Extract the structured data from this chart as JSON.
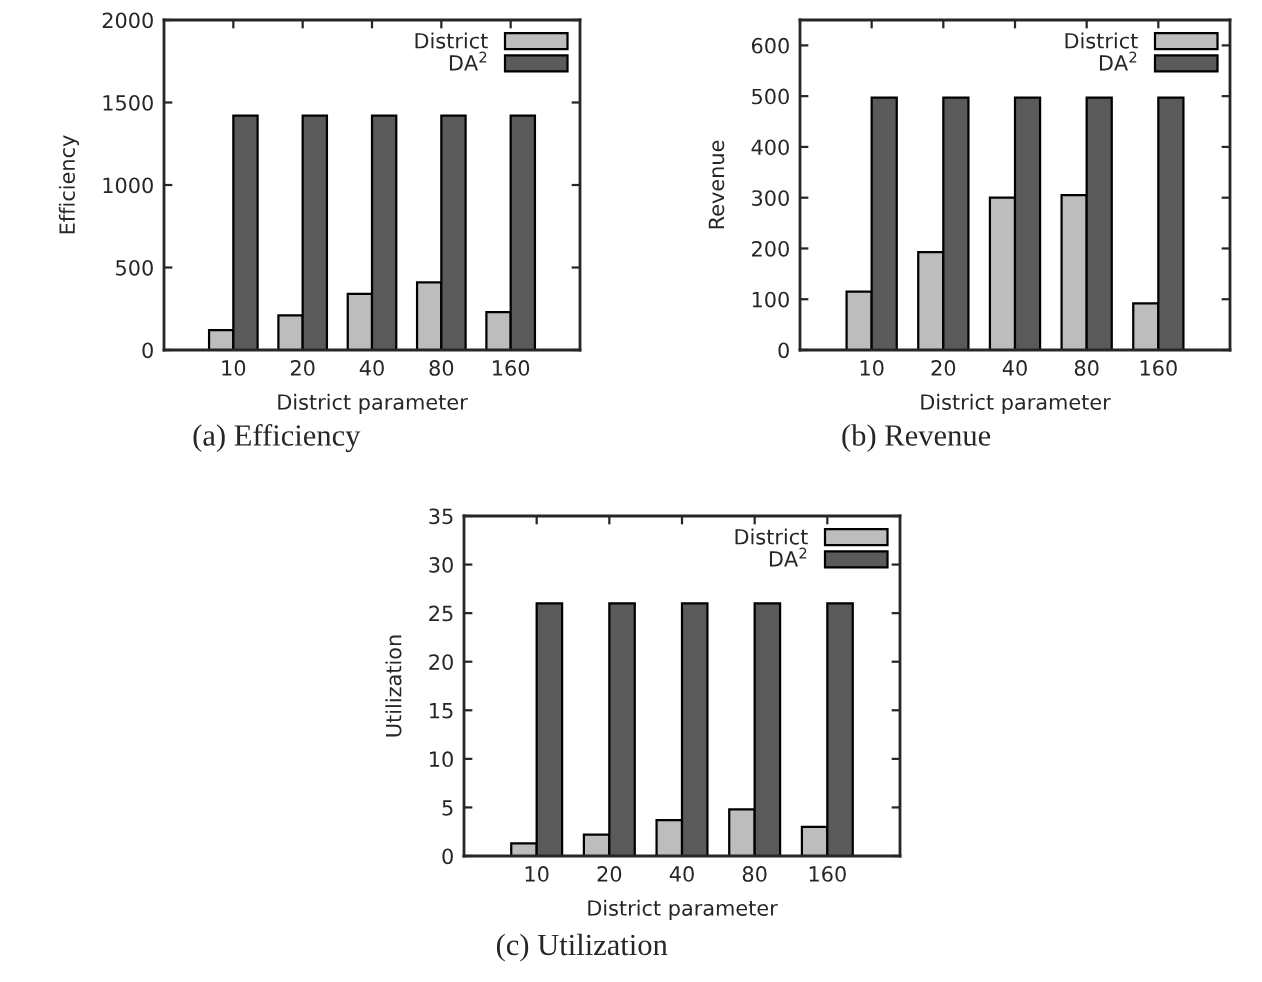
{
  "chart_data": [
    {
      "type": "bar",
      "title": "(a) Efficiency",
      "xlabel": "District parameter",
      "ylabel": "Efficiency",
      "categories": [
        "10",
        "20",
        "40",
        "80",
        "160"
      ],
      "series": [
        {
          "name": "District",
          "color": "#bdbdbd",
          "values": [
            120,
            210,
            340,
            410,
            230
          ]
        },
        {
          "name": "DA$^{2}$",
          "color": "#5a5a5a",
          "values": [
            1420,
            1420,
            1420,
            1420,
            1420
          ]
        }
      ],
      "ylim": [
        0,
        2000
      ],
      "yticks": [
        0,
        500,
        1000,
        1500,
        2000
      ],
      "legend": "top right",
      "grid": false
    },
    {
      "type": "bar",
      "title": "(b) Revenue",
      "xlabel": "District parameter",
      "ylabel": "Revenue",
      "categories": [
        "10",
        "20",
        "40",
        "80",
        "160"
      ],
      "series": [
        {
          "name": "District",
          "color": "#bdbdbd",
          "values": [
            115,
            193,
            300,
            305,
            92
          ]
        },
        {
          "name": "DA$^{2}$",
          "color": "#5a5a5a",
          "values": [
            497,
            497,
            497,
            497,
            497
          ]
        }
      ],
      "ylim": [
        0,
        650
      ],
      "yticks": [
        0,
        100,
        200,
        300,
        400,
        500,
        600
      ],
      "legend": "top right",
      "grid": false
    },
    {
      "type": "bar",
      "title": "(c) Utilization",
      "xlabel": "District parameter",
      "ylabel": "Utilization",
      "categories": [
        "10",
        "20",
        "40",
        "80",
        "160"
      ],
      "series": [
        {
          "name": "District",
          "color": "#bdbdbd",
          "values": [
            1.3,
            2.2,
            3.7,
            4.8,
            3.0
          ]
        },
        {
          "name": "DA$^{2}$",
          "color": "#5a5a5a",
          "values": [
            26,
            26,
            26,
            26,
            26
          ]
        }
      ],
      "ylim": [
        0,
        35
      ],
      "yticks": [
        0,
        5,
        10,
        15,
        20,
        25,
        30,
        35
      ],
      "legend": "top right",
      "grid": false
    }
  ]
}
